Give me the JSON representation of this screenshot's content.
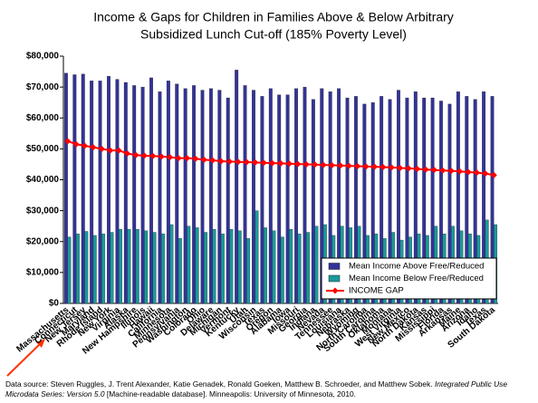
{
  "chart_data": {
    "type": "bar",
    "title": "Income & Gaps for Children in Families Above & Below Arbitrary",
    "subtitle": "Subsidized Lunch Cut-off (185% Poverty Level)",
    "categories": [
      "Massachusetts",
      "Connecticut",
      "New Jersey",
      "Maryland",
      "Rhode Island",
      "New York",
      "Virginia",
      "Alaska",
      "New Hampshire",
      "Illinois",
      "Hawaii",
      "California",
      "Minnesota",
      "Pennsylvania",
      "Washington",
      "Colorado",
      "Ohio",
      "Delaware",
      "Michigan",
      "Vermont",
      "Kentucky",
      "Utah",
      "Wisconsin",
      "Texas",
      "Oregon",
      "Alabama",
      "Iowa",
      "Missouri",
      "Georgia",
      "Indiana",
      "Nevada",
      "Tennessee",
      "Louisiana",
      "Nebraska",
      "Wyoming",
      "North Carolina",
      "South Carolina",
      "Oklahoma",
      "Montana",
      "West Virginia",
      "New Mexico",
      "North Dakota",
      "Kansas",
      "Mississippi",
      "Florida",
      "Arkansas",
      "Maine",
      "Arizona",
      "Idaho",
      "Texas",
      "South Dakota"
    ],
    "series": [
      {
        "name": "Mean Income Above Free/Reduced",
        "color": "#333399",
        "kind": "bar",
        "values": [
          74500,
          74000,
          74200,
          72000,
          72000,
          73500,
          72500,
          71500,
          70500,
          70000,
          73000,
          68500,
          72000,
          71000,
          69500,
          70500,
          69000,
          69500,
          69000,
          66500,
          75500,
          70500,
          69000,
          67000,
          69500,
          67500,
          67500,
          69500,
          70000,
          66000,
          69500,
          68500,
          69500,
          66500,
          67000,
          64500,
          65000,
          67000,
          66000,
          69000,
          66500,
          68500,
          66500,
          66500,
          65500,
          64500,
          68500,
          67000,
          66000,
          68500,
          67000
        ]
      },
      {
        "name": "Mean Income Below Free/Reduced",
        "color": "#1a9a9a",
        "kind": "bar",
        "values": [
          21500,
          22500,
          23300,
          22000,
          22500,
          23000,
          24000,
          24000,
          24000,
          23500,
          23000,
          22500,
          25500,
          21000,
          25000,
          24500,
          23000,
          24000,
          22500,
          24000,
          23500,
          21000,
          30000,
          24500,
          23500,
          21500,
          24000,
          22500,
          23000,
          25000,
          25500,
          22000,
          25000,
          24500,
          25000,
          22000,
          22500,
          21000,
          23000,
          20500,
          21500,
          22500,
          22000,
          25000,
          22500,
          25000,
          23500,
          22500,
          22000,
          27000,
          25500
        ]
      },
      {
        "name": "INCOME GAP",
        "color": "#ff0000",
        "kind": "line",
        "values": [
          52500,
          51500,
          51000,
          50500,
          50000,
          49500,
          49500,
          48500,
          48000,
          47800,
          47700,
          47500,
          47300,
          47000,
          47000,
          46800,
          46500,
          46300,
          46000,
          45900,
          45800,
          45700,
          45600,
          45500,
          45400,
          45300,
          45200,
          45100,
          45000,
          44900,
          44800,
          44700,
          44600,
          44500,
          44400,
          44300,
          44200,
          44100,
          44000,
          43800,
          43700,
          43500,
          43300,
          43200,
          43000,
          42900,
          42700,
          42500,
          42300,
          42000,
          41500
        ]
      }
    ],
    "ylim": [
      0,
      80000
    ],
    "yticks": [
      {
        "value": 0,
        "label": "$0"
      },
      {
        "value": 10000,
        "label": "$10,000"
      },
      {
        "value": 20000,
        "label": "$20,000"
      },
      {
        "value": 30000,
        "label": "$30,000"
      },
      {
        "value": 40000,
        "label": "$40,000"
      },
      {
        "value": 50000,
        "label": "$50,000"
      },
      {
        "value": 60000,
        "label": "$60,000"
      },
      {
        "value": 70000,
        "label": "$70,000"
      },
      {
        "value": 80000,
        "label": "$80,000"
      }
    ],
    "legend": "lower right",
    "source": [
      "Data source: Steven Ruggles, J. Trent Alexander, Katie Genadek, Ronald Goeken, Matthew B. Schroeder, and Matthew Sobek. ",
      "Integrated Public Use Microdata Series: Version 5.0",
      " [Machine-readable database]. Minneapolis: University of Minnesota, 2010."
    ]
  }
}
